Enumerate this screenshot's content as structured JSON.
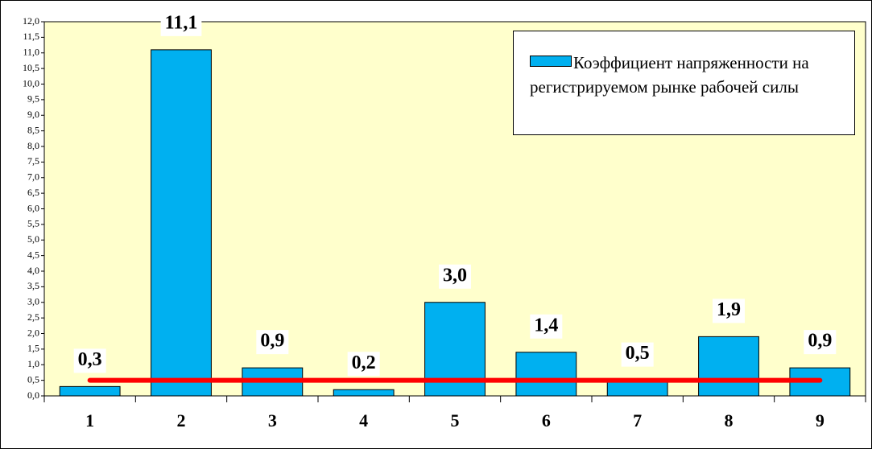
{
  "chart_data": {
    "type": "bar",
    "categories": [
      "1",
      "2",
      "3",
      "4",
      "5",
      "6",
      "7",
      "8",
      "9"
    ],
    "series": [
      {
        "name": "Коэффициент напряженности на регистрируемом рынке рабочей силы",
        "color": "#00b0f0",
        "values": [
          0.3,
          11.1,
          0.9,
          0.2,
          3.0,
          1.4,
          0.5,
          1.9,
          0.9
        ],
        "value_labels": [
          "0,3",
          "11,1",
          "0,9",
          "0,2",
          "3,0",
          "1,4",
          "0,5",
          "1,9",
          "0,9"
        ]
      }
    ],
    "reference_line": {
      "value": 0.5,
      "color": "#ff0000"
    },
    "ylim": [
      0,
      12
    ],
    "yticks": [
      {
        "value": 0,
        "label": "0,0"
      },
      {
        "value": 0.5,
        "label": "0,5"
      },
      {
        "value": 1,
        "label": "1,0"
      },
      {
        "value": 1.5,
        "label": "1,5"
      },
      {
        "value": 2,
        "label": "2,0"
      },
      {
        "value": 2.5,
        "label": "2,5"
      },
      {
        "value": 3,
        "label": "3,0"
      },
      {
        "value": 3.5,
        "label": "3,5"
      },
      {
        "value": 4,
        "label": "4,0"
      },
      {
        "value": 4.5,
        "label": "4,5"
      },
      {
        "value": 5,
        "label": "5,0"
      },
      {
        "value": 5.5,
        "label": "5,5"
      },
      {
        "value": 6,
        "label": "6,0"
      },
      {
        "value": 6.5,
        "label": "6,5"
      },
      {
        "value": 7,
        "label": "7,0"
      },
      {
        "value": 7.5,
        "label": "7,5"
      },
      {
        "value": 8,
        "label": "8,0"
      },
      {
        "value": 8.5,
        "label": "8,5"
      },
      {
        "value": 9,
        "label": "9,0"
      },
      {
        "value": 9.5,
        "label": "9,5"
      },
      {
        "value": 10,
        "label": "10,0"
      },
      {
        "value": 10.5,
        "label": "10,5"
      },
      {
        "value": 11,
        "label": "11,0"
      },
      {
        "value": 11.5,
        "label": "11,5"
      },
      {
        "value": 12,
        "label": "12,0"
      }
    ],
    "background": "#ffffcc",
    "legend": "top-right"
  }
}
